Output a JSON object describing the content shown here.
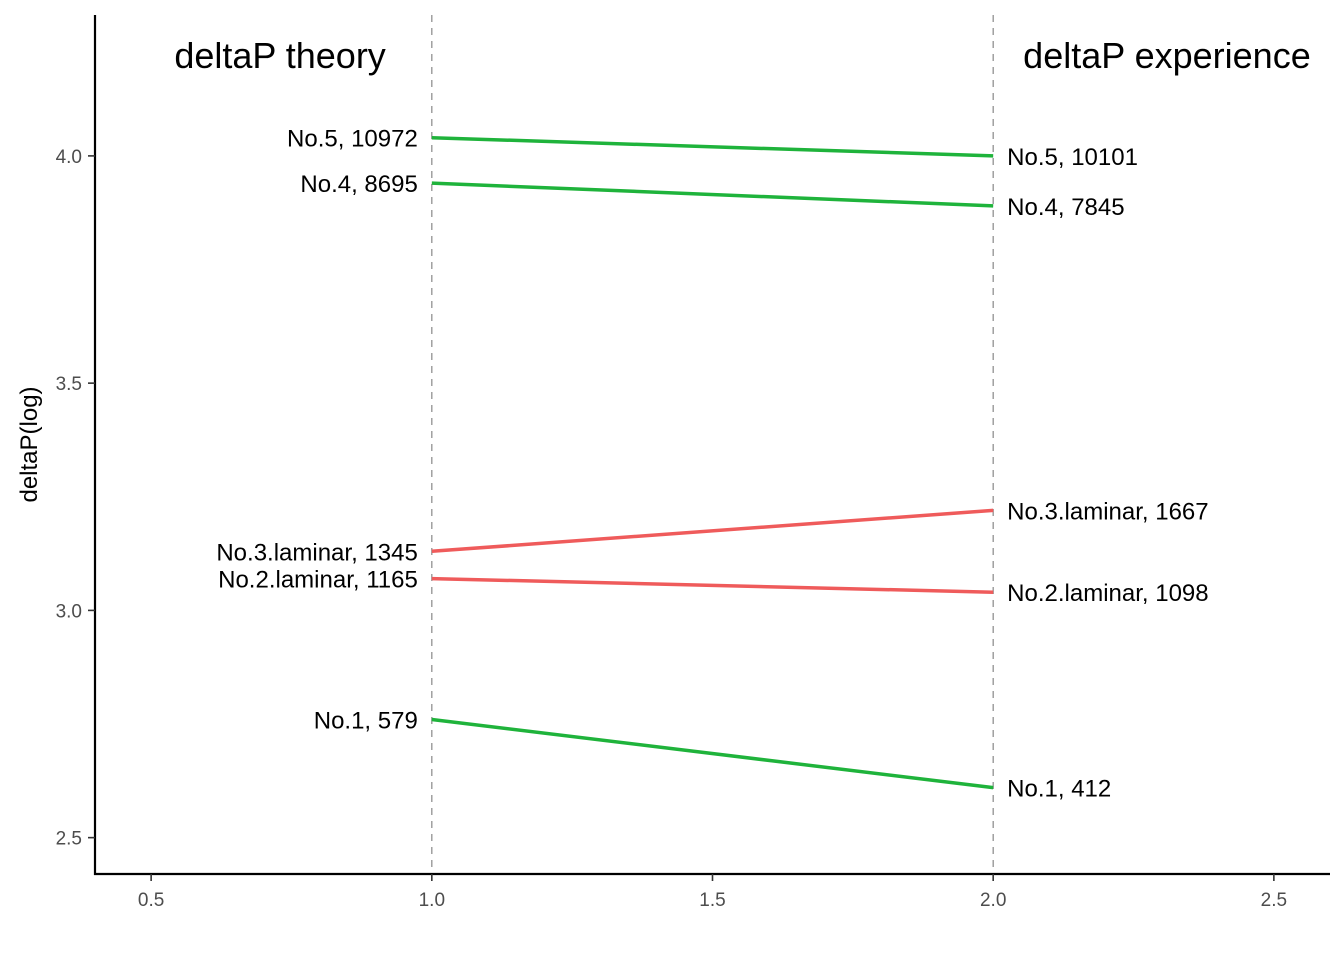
{
  "chart_data": {
    "type": "line",
    "chart_style": "slope chart",
    "ylabel": "deltaP(log)",
    "xlim": [
      0.4,
      2.6
    ],
    "ylim": [
      2.42,
      4.31
    ],
    "x_ticks": [
      0.5,
      1.0,
      1.5,
      2.0,
      2.5
    ],
    "x_tick_labels": [
      "0.5",
      "1.0",
      "1.5",
      "2.0",
      "2.5"
    ],
    "y_ticks": [
      2.5,
      3.0,
      3.5,
      4.0
    ],
    "y_tick_labels": [
      "2.5",
      "3.0",
      "3.5",
      "4.0"
    ],
    "vertical_reference_lines": [
      1.0,
      2.0
    ],
    "grid": false,
    "headers": [
      {
        "text": "deltaP theory",
        "x": 1.0
      },
      {
        "text": "deltaP experience",
        "x": 2.0
      }
    ],
    "colors": {
      "green": "#1fb33b",
      "red": "#ef5b5b"
    },
    "series": [
      {
        "x": [
          1,
          2
        ],
        "y": [
          4.04,
          4.0
        ],
        "color": "green",
        "left_label": "No.5, 10972",
        "right_label": "No.5, 10101"
      },
      {
        "x": [
          1,
          2
        ],
        "y": [
          3.94,
          3.89
        ],
        "color": "green",
        "left_label": "No.4, 8695",
        "right_label": "No.4, 7845"
      },
      {
        "x": [
          1,
          2
        ],
        "y": [
          3.13,
          3.22
        ],
        "color": "red",
        "left_label": "No.3.laminar, 1345",
        "right_label": "No.3.laminar, 1667"
      },
      {
        "x": [
          1,
          2
        ],
        "y": [
          3.07,
          3.04
        ],
        "color": "red",
        "left_label": "No.2.laminar, 1165",
        "right_label": "No.2.laminar, 1098"
      },
      {
        "x": [
          1,
          2
        ],
        "y": [
          2.76,
          2.61
        ],
        "color": "green",
        "left_label": "No.1, 579",
        "right_label": "No.1, 412"
      }
    ]
  }
}
